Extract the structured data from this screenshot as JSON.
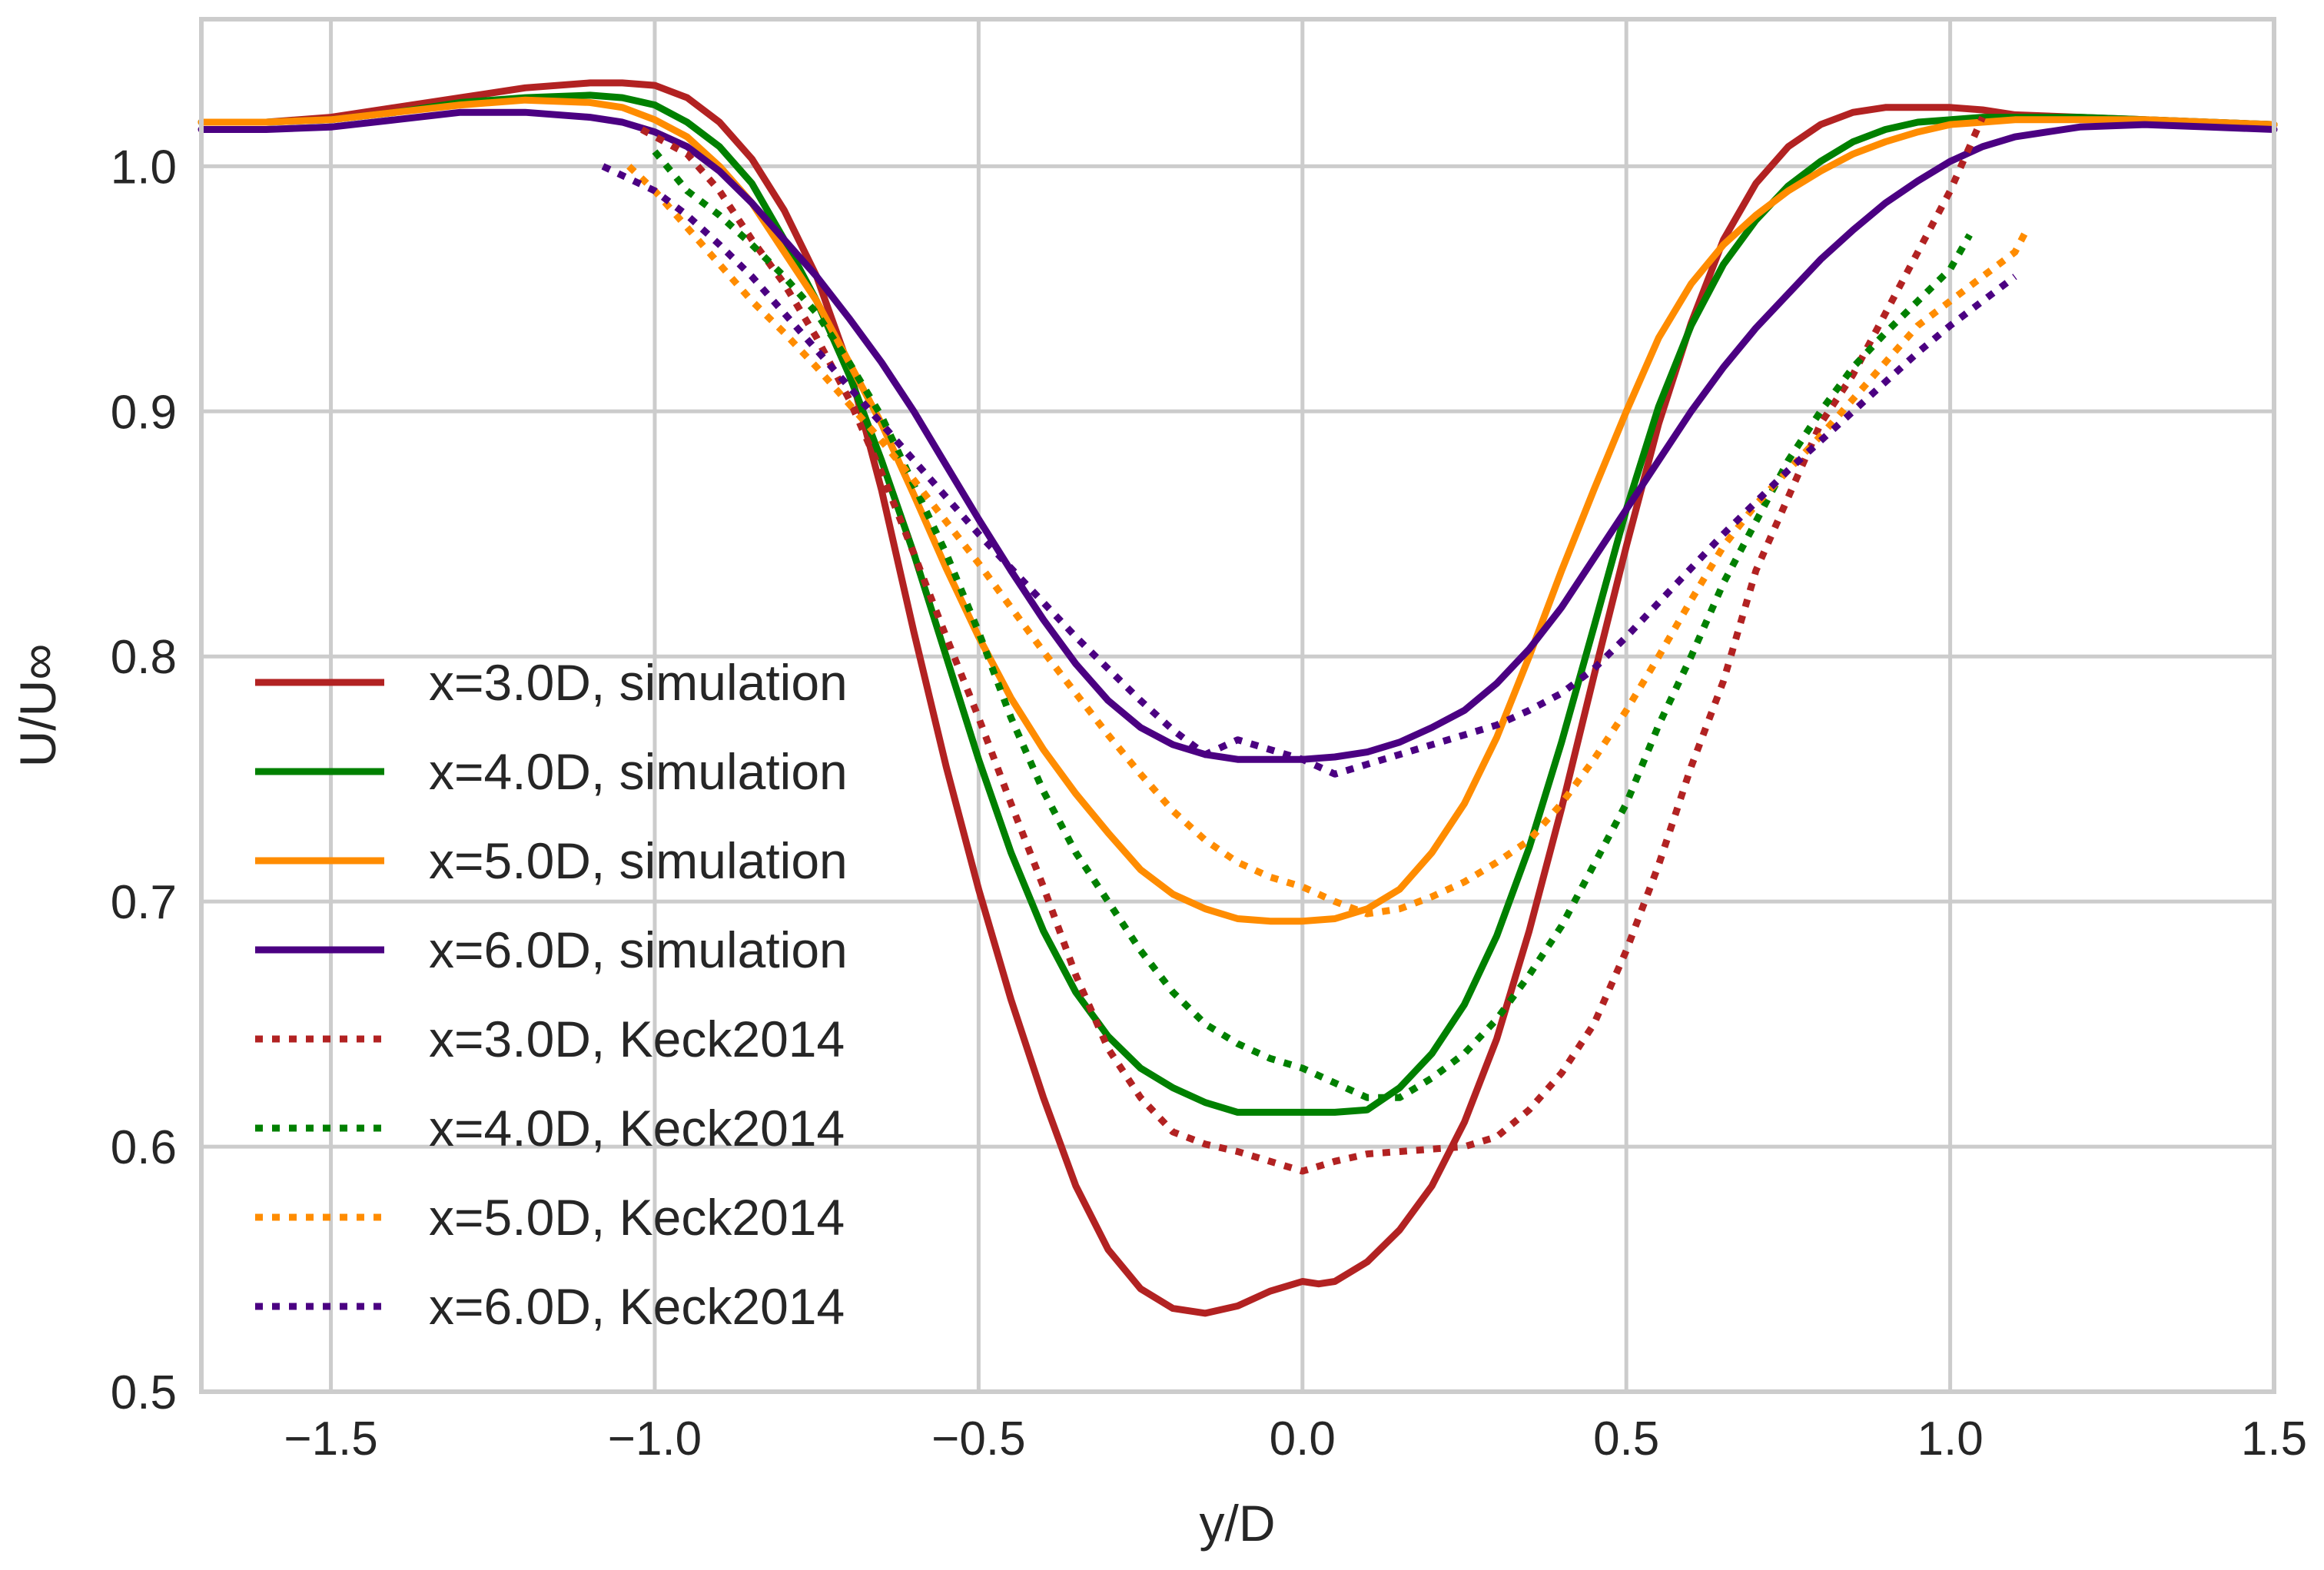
{
  "chart_data": {
    "type": "line",
    "title": "",
    "xlabel": "y/D",
    "ylabel": "U/U∞",
    "xlim": [
      -1.7,
      1.5
    ],
    "ylim": [
      0.5,
      1.06
    ],
    "grid": true,
    "legend_position": "left-middle",
    "xticks": [
      -1.5,
      -1.0,
      -0.5,
      0.0,
      0.5,
      1.0,
      1.5
    ],
    "xtick_labels": [
      "−1.5",
      "−1.0",
      "−0.5",
      "0.0",
      "0.5",
      "1.0",
      "1.5"
    ],
    "yticks": [
      0.5,
      0.6,
      0.7,
      0.8,
      0.9,
      1.0
    ],
    "ytick_labels": [
      "0.5",
      "0.6",
      "0.7",
      "0.8",
      "0.9",
      "1.0"
    ],
    "series": [
      {
        "name": "x=3.0D, simulation",
        "color": "#b22222",
        "style": "solid",
        "x": [
          -1.7,
          -1.6,
          -1.5,
          -1.4,
          -1.3,
          -1.2,
          -1.1,
          -1.05,
          -1.0,
          -0.95,
          -0.9,
          -0.85,
          -0.8,
          -0.75,
          -0.7,
          -0.65,
          -0.6,
          -0.55,
          -0.5,
          -0.45,
          -0.4,
          -0.35,
          -0.3,
          -0.25,
          -0.2,
          -0.15,
          -0.1,
          -0.05,
          0.0,
          0.025,
          0.05,
          0.1,
          0.15,
          0.2,
          0.25,
          0.3,
          0.35,
          0.4,
          0.45,
          0.5,
          0.55,
          0.6,
          0.65,
          0.7,
          0.75,
          0.8,
          0.85,
          0.9,
          0.95,
          1.0,
          1.05,
          1.1,
          1.2,
          1.3,
          1.4,
          1.5
        ],
        "y": [
          1.018,
          1.018,
          1.02,
          1.024,
          1.028,
          1.032,
          1.034,
          1.034,
          1.033,
          1.028,
          1.018,
          1.003,
          0.982,
          0.955,
          0.918,
          0.868,
          0.81,
          0.755,
          0.705,
          0.66,
          0.62,
          0.584,
          0.558,
          0.542,
          0.534,
          0.532,
          0.535,
          0.541,
          0.545,
          0.544,
          0.545,
          0.553,
          0.566,
          0.584,
          0.61,
          0.644,
          0.688,
          0.738,
          0.792,
          0.845,
          0.895,
          0.936,
          0.97,
          0.993,
          1.008,
          1.017,
          1.022,
          1.024,
          1.024,
          1.024,
          1.023,
          1.021,
          1.02,
          1.019,
          1.018,
          1.017
        ]
      },
      {
        "name": "x=4.0D, simulation",
        "color": "#008000",
        "style": "solid",
        "x": [
          -1.7,
          -1.6,
          -1.5,
          -1.4,
          -1.3,
          -1.2,
          -1.1,
          -1.05,
          -1.0,
          -0.95,
          -0.9,
          -0.85,
          -0.8,
          -0.75,
          -0.7,
          -0.65,
          -0.6,
          -0.55,
          -0.5,
          -0.45,
          -0.4,
          -0.35,
          -0.3,
          -0.25,
          -0.2,
          -0.15,
          -0.1,
          -0.05,
          0.0,
          0.05,
          0.1,
          0.15,
          0.2,
          0.25,
          0.3,
          0.35,
          0.4,
          0.45,
          0.5,
          0.55,
          0.6,
          0.65,
          0.7,
          0.75,
          0.8,
          0.85,
          0.9,
          0.95,
          1.0,
          1.05,
          1.1,
          1.2,
          1.3,
          1.4,
          1.5
        ],
        "y": [
          1.018,
          1.018,
          1.019,
          1.022,
          1.026,
          1.028,
          1.029,
          1.028,
          1.025,
          1.018,
          1.008,
          0.993,
          0.97,
          0.945,
          0.915,
          0.88,
          0.842,
          0.8,
          0.758,
          0.72,
          0.688,
          0.663,
          0.645,
          0.632,
          0.624,
          0.618,
          0.614,
          0.614,
          0.614,
          0.614,
          0.615,
          0.624,
          0.638,
          0.658,
          0.686,
          0.722,
          0.765,
          0.812,
          0.86,
          0.902,
          0.935,
          0.96,
          0.978,
          0.992,
          1.002,
          1.01,
          1.015,
          1.018,
          1.019,
          1.02,
          1.02,
          1.02,
          1.019,
          1.018,
          1.017
        ]
      },
      {
        "name": "x=5.0D, simulation",
        "color": "#ff8c00",
        "style": "solid",
        "x": [
          -1.7,
          -1.6,
          -1.5,
          -1.4,
          -1.3,
          -1.2,
          -1.1,
          -1.05,
          -1.0,
          -0.95,
          -0.9,
          -0.85,
          -0.8,
          -0.75,
          -0.7,
          -0.65,
          -0.6,
          -0.55,
          -0.5,
          -0.45,
          -0.4,
          -0.35,
          -0.3,
          -0.25,
          -0.2,
          -0.15,
          -0.1,
          -0.05,
          0.0,
          0.05,
          0.1,
          0.15,
          0.2,
          0.25,
          0.3,
          0.35,
          0.4,
          0.45,
          0.5,
          0.55,
          0.6,
          0.65,
          0.7,
          0.75,
          0.8,
          0.85,
          0.9,
          0.95,
          1.0,
          1.05,
          1.1,
          1.2,
          1.3,
          1.4,
          1.5
        ],
        "y": [
          1.018,
          1.018,
          1.019,
          1.022,
          1.025,
          1.027,
          1.026,
          1.024,
          1.019,
          1.012,
          1.0,
          0.985,
          0.965,
          0.945,
          0.92,
          0.895,
          0.866,
          0.836,
          0.808,
          0.783,
          0.762,
          0.744,
          0.728,
          0.713,
          0.703,
          0.697,
          0.693,
          0.692,
          0.692,
          0.693,
          0.697,
          0.705,
          0.72,
          0.74,
          0.767,
          0.8,
          0.835,
          0.868,
          0.9,
          0.93,
          0.952,
          0.968,
          0.98,
          0.99,
          0.998,
          1.005,
          1.01,
          1.014,
          1.017,
          1.018,
          1.019,
          1.019,
          1.019,
          1.018,
          1.017
        ]
      },
      {
        "name": "x=6.0D, simulation",
        "color": "#4b0082",
        "style": "solid",
        "x": [
          -1.7,
          -1.6,
          -1.5,
          -1.4,
          -1.3,
          -1.2,
          -1.1,
          -1.05,
          -1.0,
          -0.95,
          -0.9,
          -0.85,
          -0.8,
          -0.75,
          -0.7,
          -0.65,
          -0.6,
          -0.55,
          -0.5,
          -0.45,
          -0.4,
          -0.35,
          -0.3,
          -0.25,
          -0.2,
          -0.15,
          -0.1,
          -0.05,
          0.0,
          0.05,
          0.1,
          0.15,
          0.2,
          0.25,
          0.3,
          0.35,
          0.4,
          0.45,
          0.5,
          0.55,
          0.6,
          0.65,
          0.7,
          0.75,
          0.8,
          0.85,
          0.9,
          0.95,
          1.0,
          1.05,
          1.1,
          1.2,
          1.3,
          1.4,
          1.5
        ],
        "y": [
          1.015,
          1.015,
          1.016,
          1.019,
          1.022,
          1.022,
          1.02,
          1.018,
          1.014,
          1.008,
          0.998,
          0.985,
          0.97,
          0.955,
          0.938,
          0.92,
          0.9,
          0.878,
          0.856,
          0.835,
          0.815,
          0.797,
          0.782,
          0.771,
          0.764,
          0.76,
          0.758,
          0.758,
          0.758,
          0.759,
          0.761,
          0.765,
          0.771,
          0.778,
          0.789,
          0.803,
          0.82,
          0.84,
          0.86,
          0.88,
          0.9,
          0.918,
          0.934,
          0.948,
          0.962,
          0.974,
          0.985,
          0.994,
          1.002,
          1.008,
          1.012,
          1.016,
          1.017,
          1.016,
          1.015
        ]
      },
      {
        "name": "x=3.0D, Keck2014",
        "color": "#b22222",
        "style": "dotted",
        "x": [
          -1.02,
          -0.95,
          -0.9,
          -0.85,
          -0.8,
          -0.75,
          -0.7,
          -0.65,
          -0.6,
          -0.55,
          -0.5,
          -0.45,
          -0.4,
          -0.35,
          -0.3,
          -0.25,
          -0.2,
          -0.15,
          -0.1,
          -0.05,
          0.0,
          0.05,
          0.1,
          0.15,
          0.2,
          0.25,
          0.3,
          0.35,
          0.4,
          0.45,
          0.5,
          0.55,
          0.6,
          0.65,
          0.7,
          0.75,
          0.8,
          0.85,
          0.9,
          0.95,
          1.0,
          1.05
        ],
        "y": [
          1.015,
          1.005,
          0.99,
          0.97,
          0.952,
          0.93,
          0.905,
          0.875,
          0.842,
          0.808,
          0.775,
          0.74,
          0.706,
          0.67,
          0.64,
          0.62,
          0.606,
          0.601,
          0.598,
          0.594,
          0.59,
          0.594,
          0.597,
          0.598,
          0.599,
          0.6,
          0.604,
          0.615,
          0.63,
          0.65,
          0.68,
          0.715,
          0.755,
          0.79,
          0.835,
          0.865,
          0.895,
          0.915,
          0.94,
          0.965,
          0.99,
          1.02
        ]
      },
      {
        "name": "x=4.0D, Keck2014",
        "color": "#008000",
        "style": "dotted",
        "x": [
          -1.0,
          -0.95,
          -0.9,
          -0.85,
          -0.8,
          -0.75,
          -0.7,
          -0.65,
          -0.6,
          -0.55,
          -0.5,
          -0.45,
          -0.4,
          -0.35,
          -0.3,
          -0.25,
          -0.2,
          -0.15,
          -0.1,
          -0.05,
          0.0,
          0.05,
          0.1,
          0.15,
          0.2,
          0.25,
          0.3,
          0.35,
          0.4,
          0.45,
          0.5,
          0.55,
          0.6,
          0.65,
          0.7,
          0.75,
          0.8,
          0.85,
          0.9,
          0.95,
          1.0,
          1.03
        ],
        "y": [
          1.006,
          0.99,
          0.98,
          0.968,
          0.955,
          0.94,
          0.92,
          0.898,
          0.87,
          0.842,
          0.81,
          0.775,
          0.745,
          0.72,
          0.7,
          0.68,
          0.663,
          0.65,
          0.642,
          0.636,
          0.632,
          0.626,
          0.62,
          0.62,
          0.628,
          0.638,
          0.652,
          0.67,
          0.69,
          0.715,
          0.74,
          0.772,
          0.8,
          0.83,
          0.855,
          0.88,
          0.9,
          0.918,
          0.932,
          0.945,
          0.958,
          0.972
        ]
      },
      {
        "name": "x=5.0D, Keck2014",
        "color": "#ff8c00",
        "style": "dotted",
        "x": [
          -1.04,
          -1.0,
          -0.95,
          -0.9,
          -0.85,
          -0.8,
          -0.75,
          -0.7,
          -0.65,
          -0.6,
          -0.55,
          -0.5,
          -0.45,
          -0.4,
          -0.35,
          -0.3,
          -0.25,
          -0.2,
          -0.15,
          -0.1,
          -0.05,
          0.0,
          0.05,
          0.1,
          0.15,
          0.2,
          0.25,
          0.3,
          0.35,
          0.4,
          0.45,
          0.5,
          0.55,
          0.6,
          0.65,
          0.7,
          0.75,
          0.8,
          0.85,
          0.9,
          0.95,
          1.0,
          1.05,
          1.1,
          1.12
        ],
        "y": [
          1.0,
          0.99,
          0.975,
          0.96,
          0.945,
          0.932,
          0.918,
          0.903,
          0.888,
          0.872,
          0.855,
          0.838,
          0.82,
          0.802,
          0.785,
          0.768,
          0.752,
          0.737,
          0.725,
          0.716,
          0.71,
          0.706,
          0.7,
          0.695,
          0.697,
          0.702,
          0.708,
          0.716,
          0.725,
          0.74,
          0.758,
          0.778,
          0.8,
          0.823,
          0.845,
          0.862,
          0.876,
          0.89,
          0.905,
          0.92,
          0.935,
          0.945,
          0.955,
          0.965,
          0.975
        ]
      },
      {
        "name": "x=6.0D, Keck2014",
        "color": "#4b0082",
        "style": "dotted",
        "x": [
          -1.08,
          -1.0,
          -0.95,
          -0.9,
          -0.85,
          -0.8,
          -0.75,
          -0.7,
          -0.65,
          -0.6,
          -0.55,
          -0.5,
          -0.45,
          -0.4,
          -0.35,
          -0.3,
          -0.25,
          -0.2,
          -0.15,
          -0.1,
          -0.05,
          0.0,
          0.05,
          0.1,
          0.15,
          0.2,
          0.25,
          0.3,
          0.35,
          0.4,
          0.45,
          0.5,
          0.55,
          0.6,
          0.65,
          0.7,
          0.75,
          0.8,
          0.85,
          0.9,
          0.95,
          1.0,
          1.05,
          1.1
        ],
        "y": [
          1.0,
          0.99,
          0.98,
          0.968,
          0.955,
          0.94,
          0.925,
          0.91,
          0.895,
          0.88,
          0.865,
          0.85,
          0.836,
          0.822,
          0.808,
          0.795,
          0.782,
          0.77,
          0.76,
          0.766,
          0.762,
          0.758,
          0.752,
          0.756,
          0.76,
          0.764,
          0.768,
          0.772,
          0.778,
          0.785,
          0.795,
          0.808,
          0.822,
          0.836,
          0.85,
          0.863,
          0.876,
          0.888,
          0.9,
          0.912,
          0.924,
          0.935,
          0.945,
          0.955
        ]
      }
    ]
  }
}
